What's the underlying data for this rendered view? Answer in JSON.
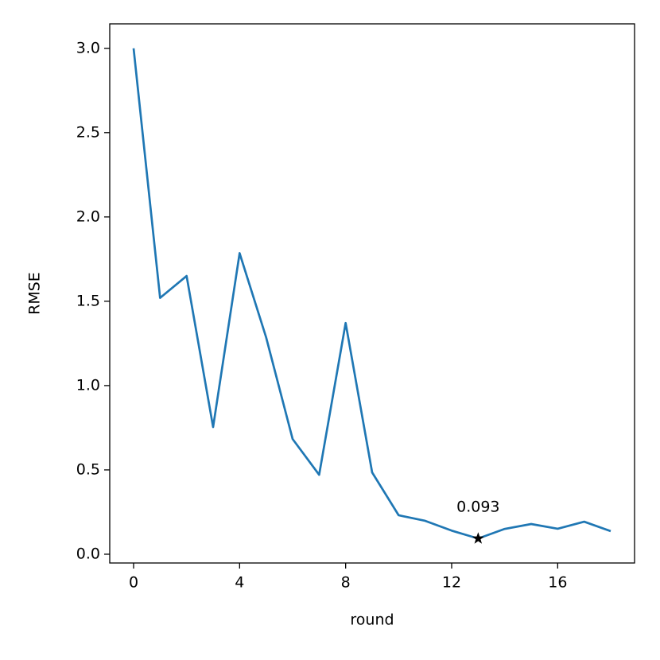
{
  "chart_data": {
    "type": "line",
    "x_label": "round",
    "y_label": "RMSE",
    "x": [
      0,
      1,
      2,
      3,
      4,
      5,
      6,
      7,
      8,
      9,
      10,
      11,
      12,
      13,
      14,
      15,
      16,
      17,
      18
    ],
    "series": [
      {
        "color": "#1f77b4",
        "values": [
          3.0,
          1.52,
          1.65,
          0.754,
          1.785,
          1.286,
          0.683,
          0.471,
          1.371,
          0.485,
          0.231,
          0.198,
          0.14,
          0.093,
          0.15,
          0.179,
          0.151,
          0.193,
          0.137
        ]
      }
    ],
    "best": {
      "x": 13,
      "value": 0.093,
      "color": "#000000"
    },
    "xlim": [
      -0.9,
      18.9
    ],
    "xticks": [
      0,
      4,
      8,
      12,
      16
    ],
    "ylim": [
      -0.052,
      3.145
    ],
    "yticks": [
      {
        "value": 0,
        "label": "0.0"
      },
      0.5,
      {
        "value": 1,
        "label": "1.0"
      },
      1.5,
      {
        "value": 2,
        "label": "2.0"
      },
      2.5,
      {
        "value": 3,
        "label": "3.0"
      }
    ]
  }
}
